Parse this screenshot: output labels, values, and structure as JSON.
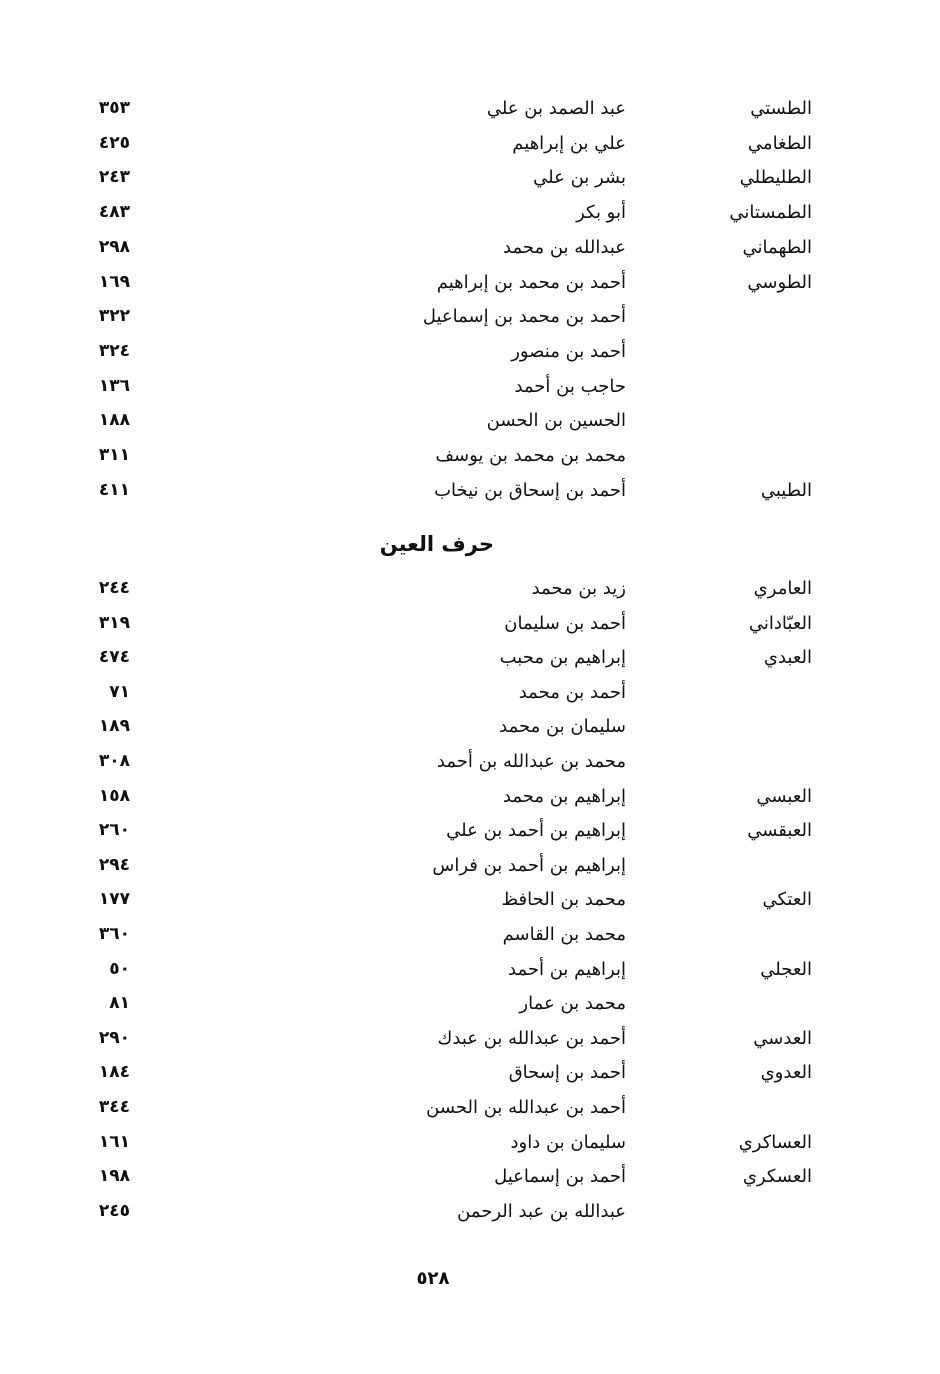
{
  "section_ta": {
    "entries": [
      {
        "nisba": "الطستي",
        "name": "عبد الصمد بن علي",
        "page": "٣٥٣"
      },
      {
        "nisba": "الطغامي",
        "name": "علي بن إبراهيم",
        "page": "٤٢٥"
      },
      {
        "nisba": "الطليطلي",
        "name": "بشر بن علي",
        "page": "٢٤٣"
      },
      {
        "nisba": "الطمستاني",
        "name": "أبو بكر",
        "page": "٤٨٣"
      },
      {
        "nisba": "الطهماني",
        "name": "عبدالله بن محمد",
        "page": "٢٩٨"
      },
      {
        "nisba": "الطوسي",
        "name": "أحمد بن محمد بن إبراهيم",
        "page": "١٦٩"
      },
      {
        "nisba": "",
        "name": "أحمد بن محمد بن إسماعيل",
        "page": "٣٢٢"
      },
      {
        "nisba": "",
        "name": "أحمد بن منصور",
        "page": "٣٢٤"
      },
      {
        "nisba": "",
        "name": "حاجب بن أحمد",
        "page": "١٣٦"
      },
      {
        "nisba": "",
        "name": "الحسين بن الحسن",
        "page": "١٨٨"
      },
      {
        "nisba": "",
        "name": "محمد بن محمد بن يوسف",
        "page": "٣١١"
      },
      {
        "nisba": "الطيبي",
        "name": "أحمد بن إسحاق بن نيخاب",
        "page": "٤١١"
      }
    ]
  },
  "section_ain": {
    "heading": "حرف العين",
    "entries": [
      {
        "nisba": "العامري",
        "name": "زيد بن محمد",
        "page": "٢٤٤"
      },
      {
        "nisba": "العبّاداني",
        "name": "أحمد بن سليمان",
        "page": "٣١٩"
      },
      {
        "nisba": "العبدي",
        "name": "إبراهيم بن محبب",
        "page": "٤٧٤"
      },
      {
        "nisba": "",
        "name": "أحمد بن محمد",
        "page": "٧١"
      },
      {
        "nisba": "",
        "name": "سليمان بن محمد",
        "page": "١٨٩"
      },
      {
        "nisba": "",
        "name": "محمد بن عبدالله بن أحمد",
        "page": "٣٠٨"
      },
      {
        "nisba": "العبسي",
        "name": "إبراهيم بن محمد",
        "page": "١٥٨"
      },
      {
        "nisba": "العبقسي",
        "name": "إبراهيم بن أحمد بن علي",
        "page": "٢٦٠"
      },
      {
        "nisba": "",
        "name": "إبراهيم بن أحمد بن فراس",
        "page": "٢٩٤"
      },
      {
        "nisba": "العتكي",
        "name": "محمد بن الحافظ",
        "page": "١٧٧"
      },
      {
        "nisba": "",
        "name": "محمد بن القاسم",
        "page": "٣٦٠"
      },
      {
        "nisba": "العجلي",
        "name": "إبراهيم بن أحمد",
        "page": "٥٠"
      },
      {
        "nisba": "",
        "name": "محمد بن عمار",
        "page": "٨١"
      },
      {
        "nisba": "العدسي",
        "name": "أحمد بن عبدالله بن عبدك",
        "page": "٢٩٠"
      },
      {
        "nisba": "العدوي",
        "name": "أحمد بن إسحاق",
        "page": "١٨٤"
      },
      {
        "nisba": "",
        "name": "أحمد بن عبدالله بن الحسن",
        "page": "٣٤٤"
      },
      {
        "nisba": "العساكري",
        "name": "سليمان بن داود",
        "page": "١٦١"
      },
      {
        "nisba": "العسكري",
        "name": "أحمد بن إسماعيل",
        "page": "١٩٨"
      },
      {
        "nisba": "",
        "name": "عبدالله بن عبد الرحمن",
        "page": "٢٤٥"
      }
    ]
  },
  "footer": {
    "page_number": "٥٢٨"
  }
}
